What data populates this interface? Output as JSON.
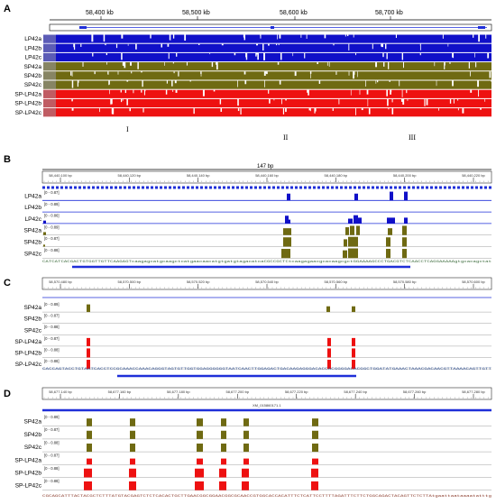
{
  "colors": {
    "blue": "#1010c8",
    "olive": "#6f6a12",
    "red": "#ee1111",
    "gene": "#1f2fd8"
  },
  "panelA": {
    "letter": "A",
    "ticks": [
      "58,400 kb",
      "58,500 kb",
      "58,600 kb",
      "58,700 kb"
    ],
    "tracks": [
      {
        "label": "LP42a",
        "color": "blue"
      },
      {
        "label": "LP42b",
        "color": "blue"
      },
      {
        "label": "LP42c",
        "color": "blue"
      },
      {
        "label": "SP42a",
        "color": "olive"
      },
      {
        "label": "SP42b",
        "color": "olive"
      },
      {
        "label": "SP42c",
        "color": "olive"
      },
      {
        "label": "SP-LP42a",
        "color": "red"
      },
      {
        "label": "SP-LP42b",
        "color": "red"
      },
      {
        "label": "SP-LP42c",
        "color": "red"
      }
    ],
    "regions": [
      "I",
      "II",
      "III"
    ]
  },
  "panelB": {
    "letter": "B",
    "span": "147 bp",
    "ticks": [
      "58,440,100 bp",
      "58,440,120 bp",
      "58,440,140 bp",
      "58,440,160 bp",
      "58,440,180 bp",
      "58,440,200 bp",
      "58,440,220 bp"
    ],
    "tracks": [
      {
        "label": "LP42a",
        "range": "[0 - 0.87]",
        "color": "blue"
      },
      {
        "label": "LP42b",
        "range": "[0 - 0.89]",
        "color": "blue"
      },
      {
        "label": "LP42c",
        "range": "[0 - 0.86]",
        "color": "blue"
      },
      {
        "label": "SP42a",
        "range": "[0 - 0.89]",
        "color": "olive"
      },
      {
        "label": "SP42b",
        "range": "[0 - 0.87]",
        "color": "olive"
      },
      {
        "label": "SP42c",
        "range": "[0 - 0.88]",
        "color": "olive"
      }
    ],
    "sequence": "CATCATCACGACTGTGGTTGTTCAAGAGTcaagagcatgcaagctcatgaacaacatgtgatgtagacatcaCGCCGCTCtcaagagaacgcacaagcgctGGAAAAGCCCTGACGTCTCAACCTCAGGAAAAAgtgcacagctat"
  },
  "panelC": {
    "letter": "C",
    "ticks": [
      "58,570,480 bp",
      "58,570,500 bp",
      "58,570,520 bp",
      "58,570,540 bp",
      "58,570,560 bp",
      "58,570,580 bp",
      "58,570,600 bp"
    ],
    "tracks": [
      {
        "label": "SP42a",
        "range": "[0 - 0.89]",
        "color": "olive"
      },
      {
        "label": "SP42b",
        "range": "[0 - 0.87]",
        "color": "olive"
      },
      {
        "label": "SP42c",
        "range": "[0 - 0.88]",
        "color": "olive"
      },
      {
        "label": "SP-LP42a",
        "range": "[0 - 0.87]",
        "color": "red"
      },
      {
        "label": "SP-LP42b",
        "range": "[0 - 0.88]",
        "color": "red"
      },
      {
        "label": "SP-LP42c",
        "range": "[0 - 0.88]",
        "color": "red"
      }
    ],
    "sequence": "CACCAGTACCTGTAATCACCTCCGCAAACCAAACAGGGTAGTGTTGGTGGAGGGGGGTAATCAACTTGGAGACTGACAAGAGGGACACCACGGGGACACGGCTGGATATGAAACTAAACGACAACGTTAAAACAGTTGTT"
  },
  "panelD": {
    "letter": "D",
    "gene_label": "XM_015860171.1",
    "ticks": [
      "58,677,140 bp",
      "58,677,160 bp",
      "58,677,180 bp",
      "58,677,200 bp",
      "58,677,220 bp",
      "58,677,240 bp",
      "58,677,260 bp",
      "58,677,280 bp"
    ],
    "tracks": [
      {
        "label": "SP42a",
        "range": "[0 - 0.89]",
        "color": "olive"
      },
      {
        "label": "SP42b",
        "range": "[0 - 0.87]",
        "color": "olive"
      },
      {
        "label": "SP42c",
        "range": "[0 - 0.88]",
        "color": "olive"
      },
      {
        "label": "SP-LP42a",
        "range": "[0 - 0.87]",
        "color": "red"
      },
      {
        "label": "SP-LP42b",
        "range": "[0 - 0.88]",
        "color": "red"
      },
      {
        "label": "SP-LP42c",
        "range": "[0 - 0.88]",
        "color": "red"
      }
    ],
    "sequence": "CGCAGCATTTACTACGCTCTTTATGTACGAGTCTCTCACACTGCTTGAACGGCGGAACGGCGCAACCGTGGCACCACATTTCTCATTCCTTTTAGATTTCTTCTGGCAGACTACAGTTCTCTTAtgaattaataaaatatttg"
  }
}
